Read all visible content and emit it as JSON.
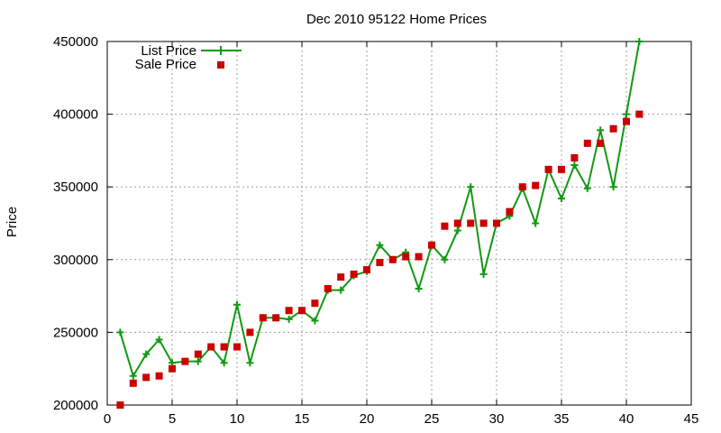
{
  "chart_data": {
    "type": "line",
    "title": "Dec 2010 95122 Home Prices",
    "xlabel": "",
    "ylabel": "Price",
    "xlim": [
      0,
      45
    ],
    "ylim": [
      200000,
      450000
    ],
    "xticks": [
      0,
      5,
      10,
      15,
      20,
      25,
      30,
      35,
      40,
      45
    ],
    "yticks": [
      200000,
      250000,
      300000,
      350000,
      400000,
      450000
    ],
    "grid": true,
    "legend_position": "top-left",
    "series": [
      {
        "name": "List Price",
        "style": "line-with-plus-markers",
        "color": "#119911",
        "x": [
          1,
          2,
          3,
          4,
          5,
          6,
          7,
          8,
          9,
          10,
          11,
          12,
          13,
          14,
          15,
          16,
          17,
          18,
          19,
          20,
          21,
          22,
          23,
          24,
          25,
          26,
          27,
          28,
          29,
          30,
          31,
          32,
          33,
          34,
          35,
          36,
          37,
          38,
          39,
          40,
          41
        ],
        "values": [
          250000,
          220000,
          235000,
          245000,
          229000,
          230000,
          230000,
          240000,
          229000,
          269000,
          229000,
          260000,
          260000,
          259000,
          265000,
          258000,
          279000,
          279000,
          289000,
          292000,
          310000,
          300000,
          305000,
          280000,
          310000,
          300000,
          320000,
          350000,
          290000,
          325000,
          330000,
          349000,
          325000,
          362000,
          342000,
          365000,
          349000,
          389000,
          350000,
          400000,
          450000
        ]
      },
      {
        "name": "Sale Price",
        "style": "square-markers",
        "color": "#cc0000",
        "x": [
          1,
          2,
          3,
          4,
          5,
          6,
          7,
          8,
          9,
          10,
          11,
          12,
          13,
          14,
          15,
          16,
          17,
          18,
          19,
          20,
          21,
          22,
          23,
          24,
          25,
          26,
          27,
          28,
          29,
          30,
          31,
          32,
          33,
          34,
          35,
          36,
          37,
          38,
          39,
          40,
          41
        ],
        "values": [
          200000,
          215000,
          219000,
          220000,
          225000,
          230000,
          235000,
          240000,
          240000,
          240000,
          250000,
          260000,
          260000,
          265000,
          265000,
          270000,
          280000,
          288000,
          290000,
          293000,
          298000,
          300000,
          302000,
          302000,
          310000,
          323000,
          325000,
          325000,
          325000,
          325000,
          333000,
          350000,
          351000,
          362000,
          362000,
          370000,
          380000,
          380000,
          390000,
          395000,
          400000
        ]
      }
    ]
  }
}
